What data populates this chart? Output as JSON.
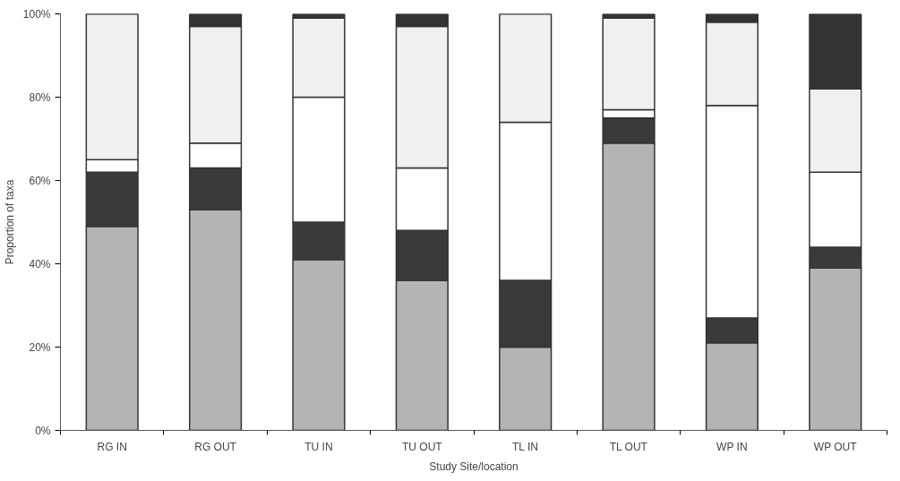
{
  "chart_data": {
    "type": "bar",
    "stacked": true,
    "xlabel": "Study Site/location",
    "ylabel": "Proportion of taxa",
    "categories": [
      "RG IN",
      "RG OUT",
      "TU IN",
      "TU OUT",
      "TL IN",
      "TL OUT",
      "WP IN",
      "WP OUT"
    ],
    "series": [
      {
        "color": "#b4b4b4",
        "values": [
          49,
          53,
          41,
          36,
          20,
          69,
          21,
          39
        ]
      },
      {
        "color": "#3a3a3a",
        "values": [
          13,
          10,
          9,
          12,
          16,
          6,
          6,
          5
        ]
      },
      {
        "color": "#ffffff",
        "values": [
          3,
          6,
          30,
          15,
          38,
          2,
          51,
          18
        ]
      },
      {
        "color": "#f0f0f0",
        "values": [
          35,
          28,
          19,
          34,
          26,
          22,
          20,
          20
        ]
      },
      {
        "color": "#333333",
        "values": [
          0,
          3,
          1,
          3,
          0,
          1,
          2,
          18
        ]
      }
    ],
    "ylim": [
      0,
      100
    ],
    "yticks": [
      {
        "value": 0,
        "label": "0%"
      },
      {
        "value": 20,
        "label": "20%"
      },
      {
        "value": 40,
        "label": "40%"
      },
      {
        "value": 60,
        "label": "60%"
      },
      {
        "value": 80,
        "label": "80%"
      },
      {
        "value": 100,
        "label": "100%"
      }
    ],
    "grid": false
  }
}
